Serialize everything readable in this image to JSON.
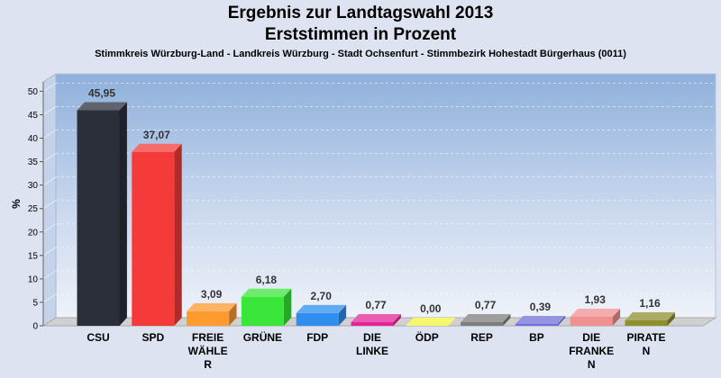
{
  "title_line1": "Ergebnis zur Landtagswahl 2013",
  "title_line2": "Erststimmen in Prozent",
  "subtitle": "Stimmkreis Würzburg-Land - Landkreis Würzburg - Stadt Ochsenfurt - Stimmbezirk Hohestadt Bürgerhaus (0011)",
  "chart_data": {
    "type": "bar",
    "title": "Ergebnis zur Landtagswahl 2013 Erststimmen in Prozent",
    "ylabel": "%",
    "xlabel": "",
    "ylim": [
      0,
      52
    ],
    "yticks": [
      0,
      5,
      10,
      15,
      20,
      25,
      30,
      35,
      40,
      45,
      50
    ],
    "grid": true,
    "categories": [
      "CSU",
      "SPD",
      "FREIE WÄHLER",
      "GRÜNE",
      "FDP",
      "DIE LINKE",
      "ÖDP",
      "REP",
      "BP",
      "DIE FRANKEN",
      "PIRATEN"
    ],
    "category_display": [
      [
        "CSU"
      ],
      [
        "SPD"
      ],
      [
        "FREIE",
        "WÄHLE",
        "R"
      ],
      [
        "GRÜNE"
      ],
      [
        "FDP"
      ],
      [
        "DIE",
        "LINKE"
      ],
      [
        "ÖDP"
      ],
      [
        "REP"
      ],
      [
        "BP"
      ],
      [
        "DIE",
        "FRANKE",
        "N"
      ],
      [
        "PIRATE",
        "N"
      ]
    ],
    "values": [
      45.95,
      37.07,
      3.09,
      6.18,
      2.7,
      0.77,
      0.0,
      0.77,
      0.39,
      1.93,
      1.16
    ],
    "value_labels": [
      "45,95",
      "37,07",
      "3,09",
      "6,18",
      "2,70",
      "0,77",
      "0,00",
      "0,77",
      "0,39",
      "1,93",
      "1,16"
    ],
    "colors": [
      "#2b2f3a",
      "#f53a3a",
      "#ff9a2e",
      "#39e639",
      "#2f8ef0",
      "#e4259a",
      "#f4f43c",
      "#7d7d7d",
      "#7070d8",
      "#f09090",
      "#8f8f30"
    ]
  }
}
